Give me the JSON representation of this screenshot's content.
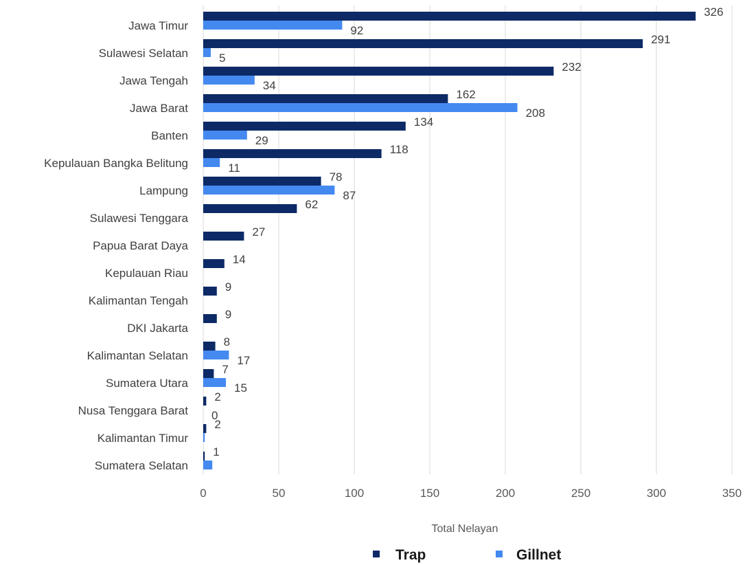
{
  "chart_data": {
    "type": "bar",
    "orientation": "horizontal",
    "categories": [
      "Jawa Timur",
      "Sulawesi Selatan",
      "Jawa Tengah",
      "Jawa Barat",
      "Banten",
      "Kepulauan Bangka Belitung",
      "Lampung",
      "Sulawesi Tenggara",
      "Papua Barat Daya",
      "Kepulauan Riau",
      "Kalimantan Tengah",
      "DKI Jakarta",
      "Kalimantan Selatan",
      "Sumatera Utara",
      "Nusa Tenggara Barat",
      "Kalimantan Timur",
      "Sumatera Selatan"
    ],
    "series": [
      {
        "name": "Trap",
        "color": "#0d2a66",
        "values": [
          326,
          291,
          232,
          162,
          134,
          118,
          78,
          62,
          27,
          14,
          9,
          9,
          8,
          7,
          2,
          2,
          1
        ],
        "labels": [
          "326",
          "291",
          "232",
          "162",
          "134",
          "118",
          "78",
          "62",
          "27",
          "14",
          "9",
          "9",
          "8",
          "7",
          "2",
          "2",
          "1"
        ]
      },
      {
        "name": "Gillnet",
        "color": "#4489f0",
        "values": [
          92,
          5,
          34,
          208,
          29,
          11,
          87,
          null,
          null,
          null,
          null,
          null,
          17,
          15,
          0,
          1,
          6
        ],
        "labels": [
          "92",
          "5",
          "34",
          "208",
          "29",
          "11",
          "87",
          "",
          "",
          "",
          "",
          "",
          "17",
          "15",
          "0",
          "",
          ""
        ]
      }
    ],
    "title": "",
    "xlabel": "Total Nelayan",
    "ylabel": "",
    "xlim": [
      0,
      350
    ],
    "x_ticks": [
      "0",
      "50",
      "100",
      "150",
      "200",
      "250",
      "300",
      "350"
    ],
    "grid": "vertical",
    "legend_position": "bottom"
  }
}
